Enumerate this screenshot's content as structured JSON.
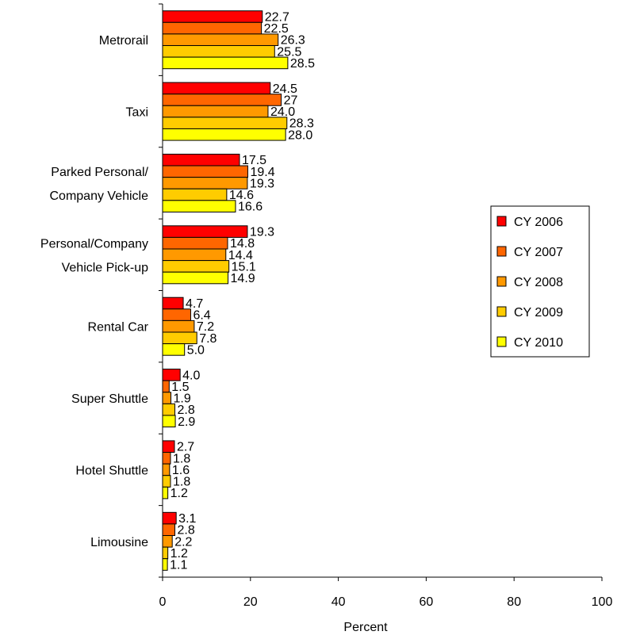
{
  "chart_data": {
    "type": "bar",
    "orientation": "horizontal",
    "categories": [
      [
        "Metrorail"
      ],
      [
        "Taxi"
      ],
      [
        "Parked Personal/",
        "Company Vehicle"
      ],
      [
        "Personal/Company",
        "Vehicle Pick-up"
      ],
      [
        "Rental Car"
      ],
      [
        "Super Shuttle"
      ],
      [
        "Hotel Shuttle"
      ],
      [
        "Limousine"
      ]
    ],
    "series": [
      {
        "name": "CY 2006",
        "color": "#ff0000",
        "values": [
          22.7,
          24.5,
          17.5,
          19.3,
          4.7,
          4.0,
          2.7,
          3.1
        ],
        "labels": [
          "22.7",
          "24.5",
          "17.5",
          "19.3",
          "4.7",
          "4.0",
          "2.7",
          "3.1"
        ]
      },
      {
        "name": "CY 2007",
        "color": "#ff6600",
        "values": [
          22.5,
          27,
          19.4,
          14.8,
          6.4,
          1.5,
          1.8,
          2.8
        ],
        "labels": [
          "22.5",
          "27",
          "19.4",
          "14.8",
          "6.4",
          "1.5",
          "1.8",
          "2.8"
        ]
      },
      {
        "name": "CY 2008",
        "color": "#ff9900",
        "values": [
          26.3,
          24.0,
          19.3,
          14.4,
          7.2,
          1.9,
          1.6,
          2.2
        ],
        "labels": [
          "26.3",
          "24.0",
          "19.3",
          "14.4",
          "7.2",
          "1.9",
          "1.6",
          "2.2"
        ]
      },
      {
        "name": "CY 2009",
        "color": "#ffcc00",
        "values": [
          25.5,
          28.3,
          14.6,
          15.1,
          7.8,
          2.8,
          1.8,
          1.2
        ],
        "labels": [
          "25.5",
          "28.3",
          "14.6",
          "15.1",
          "7.8",
          "2.8",
          "1.8",
          "1.2"
        ]
      },
      {
        "name": "CY 2010",
        "color": "#ffff00",
        "values": [
          28.5,
          28.0,
          16.6,
          14.9,
          5.0,
          2.9,
          1.2,
          1.1
        ],
        "labels": [
          "28.5",
          "28.0",
          "16.6",
          "14.9",
          "5.0",
          "2.9",
          "1.2",
          "1.1"
        ]
      }
    ],
    "xlabel": "Percent",
    "xlim": [
      0,
      100
    ],
    "xticks": [
      "0",
      "20",
      "40",
      "60",
      "80",
      "100"
    ],
    "grid": false,
    "legend_position": "right"
  }
}
